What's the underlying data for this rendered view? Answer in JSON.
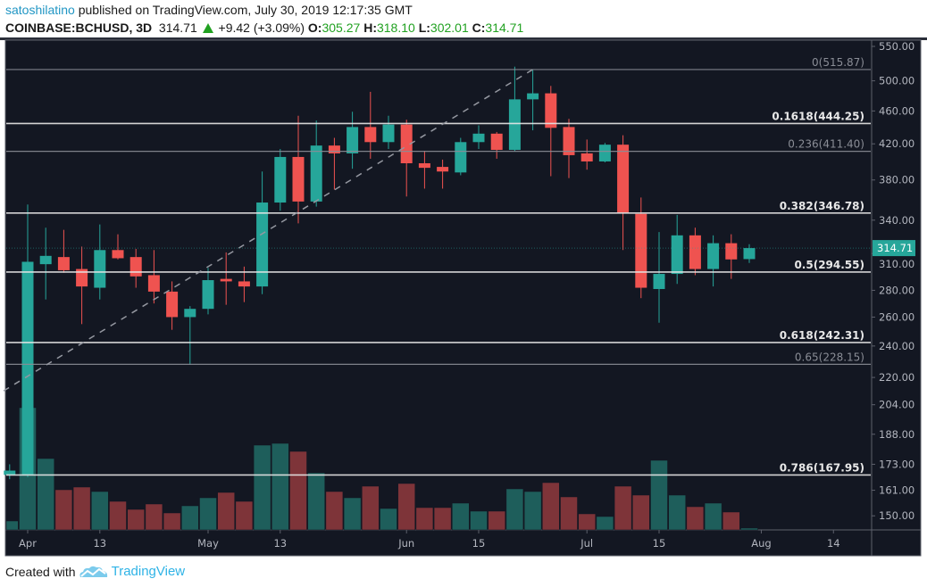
{
  "header": {
    "author": "satoshilatino",
    "published": "published on TradingView.com, July 30, 2019 12:17:35 GMT"
  },
  "ticker": {
    "symbol": "COINBASE:BCHUSD, 3D",
    "last": "314.71",
    "change": "+9.42 (+3.09%)",
    "change_icon": "triangle-up-icon",
    "o_label": "O:",
    "o": "305.27",
    "h_label": "H:",
    "h": "318.10",
    "l_label": "L:",
    "l": "302.01",
    "c_label": "C:",
    "c": "314.71"
  },
  "footer": {
    "created_with": "Created with",
    "brand": "TradingView",
    "logo_icon": "tradingview-cloud-icon"
  },
  "colors": {
    "background": "#131722",
    "up": "#26a69a",
    "down": "#ef5350",
    "volume_up": "#1e5e5b",
    "volume_down": "#7e3439",
    "fib_major": "#e8e8e8",
    "fib_minor": "#8a8d96",
    "trendline": "#9598a1",
    "axis_text": "#b2b5be"
  },
  "chart_data": {
    "type": "candlestick",
    "scale": "log",
    "grid": false,
    "ylim": [
      140,
      560
    ],
    "y_ticks": [
      "550.00",
      "500.00",
      "460.00",
      "420.00",
      "380.00",
      "340.00",
      "310.00",
      "280.00",
      "260.00",
      "240.00",
      "220.00",
      "204.00",
      "188.00",
      "173.00",
      "161.00",
      "150.00"
    ],
    "x_ticks": [
      {
        "label": "Apr",
        "date": "2019-04-01"
      },
      {
        "label": "13",
        "date": "2019-04-13"
      },
      {
        "label": "May",
        "date": "2019-05-01"
      },
      {
        "label": "13",
        "date": "2019-05-13"
      },
      {
        "label": "Jun",
        "date": "2019-06-03"
      },
      {
        "label": "15",
        "date": "2019-06-15"
      },
      {
        "label": "Jul",
        "date": "2019-07-03"
      },
      {
        "label": "15",
        "date": "2019-07-15"
      },
      {
        "label": "Aug",
        "date": "2019-08-01"
      },
      {
        "label": "14",
        "date": "2019-08-13"
      }
    ],
    "last_price": "314.71",
    "candles": [
      {
        "date": "2019-03-29",
        "o": 168,
        "h": 173,
        "l": 166,
        "c": 170,
        "v": 10
      },
      {
        "date": "2019-04-01",
        "o": 168,
        "h": 355,
        "l": 167,
        "c": 303,
        "v": 137
      },
      {
        "date": "2019-04-04",
        "o": 301,
        "h": 333,
        "l": 273,
        "c": 308,
        "v": 80
      },
      {
        "date": "2019-04-07",
        "o": 307,
        "h": 331,
        "l": 294,
        "c": 296,
        "v": 45
      },
      {
        "date": "2019-04-10",
        "o": 297,
        "h": 316,
        "l": 255,
        "c": 283,
        "v": 48
      },
      {
        "date": "2019-04-13",
        "o": 282,
        "h": 336,
        "l": 273,
        "c": 313,
        "v": 43
      },
      {
        "date": "2019-04-16",
        "o": 313,
        "h": 327,
        "l": 305,
        "c": 306,
        "v": 32
      },
      {
        "date": "2019-04-19",
        "o": 307,
        "h": 314,
        "l": 282,
        "c": 291,
        "v": 23
      },
      {
        "date": "2019-04-22",
        "o": 292,
        "h": 313,
        "l": 270,
        "c": 279,
        "v": 29
      },
      {
        "date": "2019-04-25",
        "o": 279,
        "h": 287,
        "l": 251,
        "c": 260,
        "v": 19
      },
      {
        "date": "2019-04-28",
        "o": 260,
        "h": 268,
        "l": 228,
        "c": 266,
        "v": 27
      },
      {
        "date": "2019-05-01",
        "o": 266,
        "h": 298,
        "l": 262,
        "c": 288,
        "v": 36
      },
      {
        "date": "2019-05-04",
        "o": 289,
        "h": 311,
        "l": 269,
        "c": 287,
        "v": 42
      },
      {
        "date": "2019-05-07",
        "o": 287,
        "h": 299,
        "l": 271,
        "c": 283,
        "v": 32
      },
      {
        "date": "2019-05-10",
        "o": 283,
        "h": 389,
        "l": 277,
        "c": 357,
        "v": 95
      },
      {
        "date": "2019-05-13",
        "o": 357,
        "h": 414,
        "l": 349,
        "c": 405,
        "v": 97
      },
      {
        "date": "2019-05-16",
        "o": 405,
        "h": 454,
        "l": 337,
        "c": 358,
        "v": 88
      },
      {
        "date": "2019-05-19",
        "o": 358,
        "h": 448,
        "l": 353,
        "c": 418,
        "v": 64
      },
      {
        "date": "2019-05-22",
        "o": 418,
        "h": 427,
        "l": 370,
        "c": 409,
        "v": 43
      },
      {
        "date": "2019-05-25",
        "o": 409,
        "h": 459,
        "l": 392,
        "c": 440,
        "v": 36
      },
      {
        "date": "2019-05-28",
        "o": 440,
        "h": 485,
        "l": 403,
        "c": 422,
        "v": 49
      },
      {
        "date": "2019-05-31",
        "o": 422,
        "h": 454,
        "l": 414,
        "c": 443,
        "v": 24
      },
      {
        "date": "2019-06-03",
        "o": 443,
        "h": 449,
        "l": 363,
        "c": 398,
        "v": 52
      },
      {
        "date": "2019-06-06",
        "o": 398,
        "h": 412,
        "l": 371,
        "c": 393,
        "v": 25
      },
      {
        "date": "2019-06-09",
        "o": 394,
        "h": 402,
        "l": 371,
        "c": 389,
        "v": 25
      },
      {
        "date": "2019-06-12",
        "o": 388,
        "h": 427,
        "l": 385,
        "c": 422,
        "v": 30
      },
      {
        "date": "2019-06-15",
        "o": 422,
        "h": 442,
        "l": 414,
        "c": 432,
        "v": 21
      },
      {
        "date": "2019-06-18",
        "o": 432,
        "h": 434,
        "l": 403,
        "c": 413,
        "v": 21
      },
      {
        "date": "2019-06-21",
        "o": 413,
        "h": 520,
        "l": 411,
        "c": 475,
        "v": 46
      },
      {
        "date": "2019-06-24",
        "o": 475,
        "h": 516,
        "l": 436,
        "c": 483,
        "v": 43
      },
      {
        "date": "2019-06-27",
        "o": 483,
        "h": 493,
        "l": 384,
        "c": 439,
        "v": 53
      },
      {
        "date": "2019-06-30",
        "o": 440,
        "h": 450,
        "l": 382,
        "c": 407,
        "v": 37
      },
      {
        "date": "2019-07-03",
        "o": 409,
        "h": 425,
        "l": 391,
        "c": 400,
        "v": 18
      },
      {
        "date": "2019-07-06",
        "o": 400,
        "h": 421,
        "l": 399,
        "c": 419,
        "v": 15
      },
      {
        "date": "2019-07-09",
        "o": 419,
        "h": 430,
        "l": 313,
        "c": 347,
        "v": 49
      },
      {
        "date": "2019-07-12",
        "o": 346,
        "h": 362,
        "l": 274,
        "c": 282,
        "v": 39
      },
      {
        "date": "2019-07-15",
        "o": 281,
        "h": 329,
        "l": 256,
        "c": 293,
        "v": 78
      },
      {
        "date": "2019-07-18",
        "o": 293,
        "h": 345,
        "l": 285,
        "c": 326,
        "v": 39
      },
      {
        "date": "2019-07-21",
        "o": 326,
        "h": 333,
        "l": 292,
        "c": 297,
        "v": 26
      },
      {
        "date": "2019-07-24",
        "o": 297,
        "h": 326,
        "l": 283,
        "c": 319,
        "v": 30
      },
      {
        "date": "2019-07-27",
        "o": 319,
        "h": 327,
        "l": 289,
        "c": 305,
        "v": 20
      },
      {
        "date": "2019-07-30",
        "o": 305.27,
        "h": 318.1,
        "l": 302.01,
        "c": 314.71,
        "v": 2
      }
    ],
    "fib_levels": [
      {
        "label": "0(515.87)",
        "price": 515.87,
        "major": false
      },
      {
        "label": "0.1618(444.25)",
        "price": 444.25,
        "major": true
      },
      {
        "label": "0.236(411.40)",
        "price": 411.4,
        "major": false
      },
      {
        "label": "0.382(346.78)",
        "price": 346.78,
        "major": true
      },
      {
        "label": "0.5(294.55)",
        "price": 294.55,
        "major": true
      },
      {
        "label": "0.618(242.31)",
        "price": 242.31,
        "major": true
      },
      {
        "label": "0.65(228.15)",
        "price": 228.15,
        "major": false
      },
      {
        "label": "0.786(167.95)",
        "price": 167.95,
        "major": true
      }
    ],
    "trendline": {
      "from": {
        "date": "2019-03-28",
        "price": 212
      },
      "to": {
        "date": "2019-06-24",
        "price": 516
      },
      "style": "dashed"
    }
  }
}
